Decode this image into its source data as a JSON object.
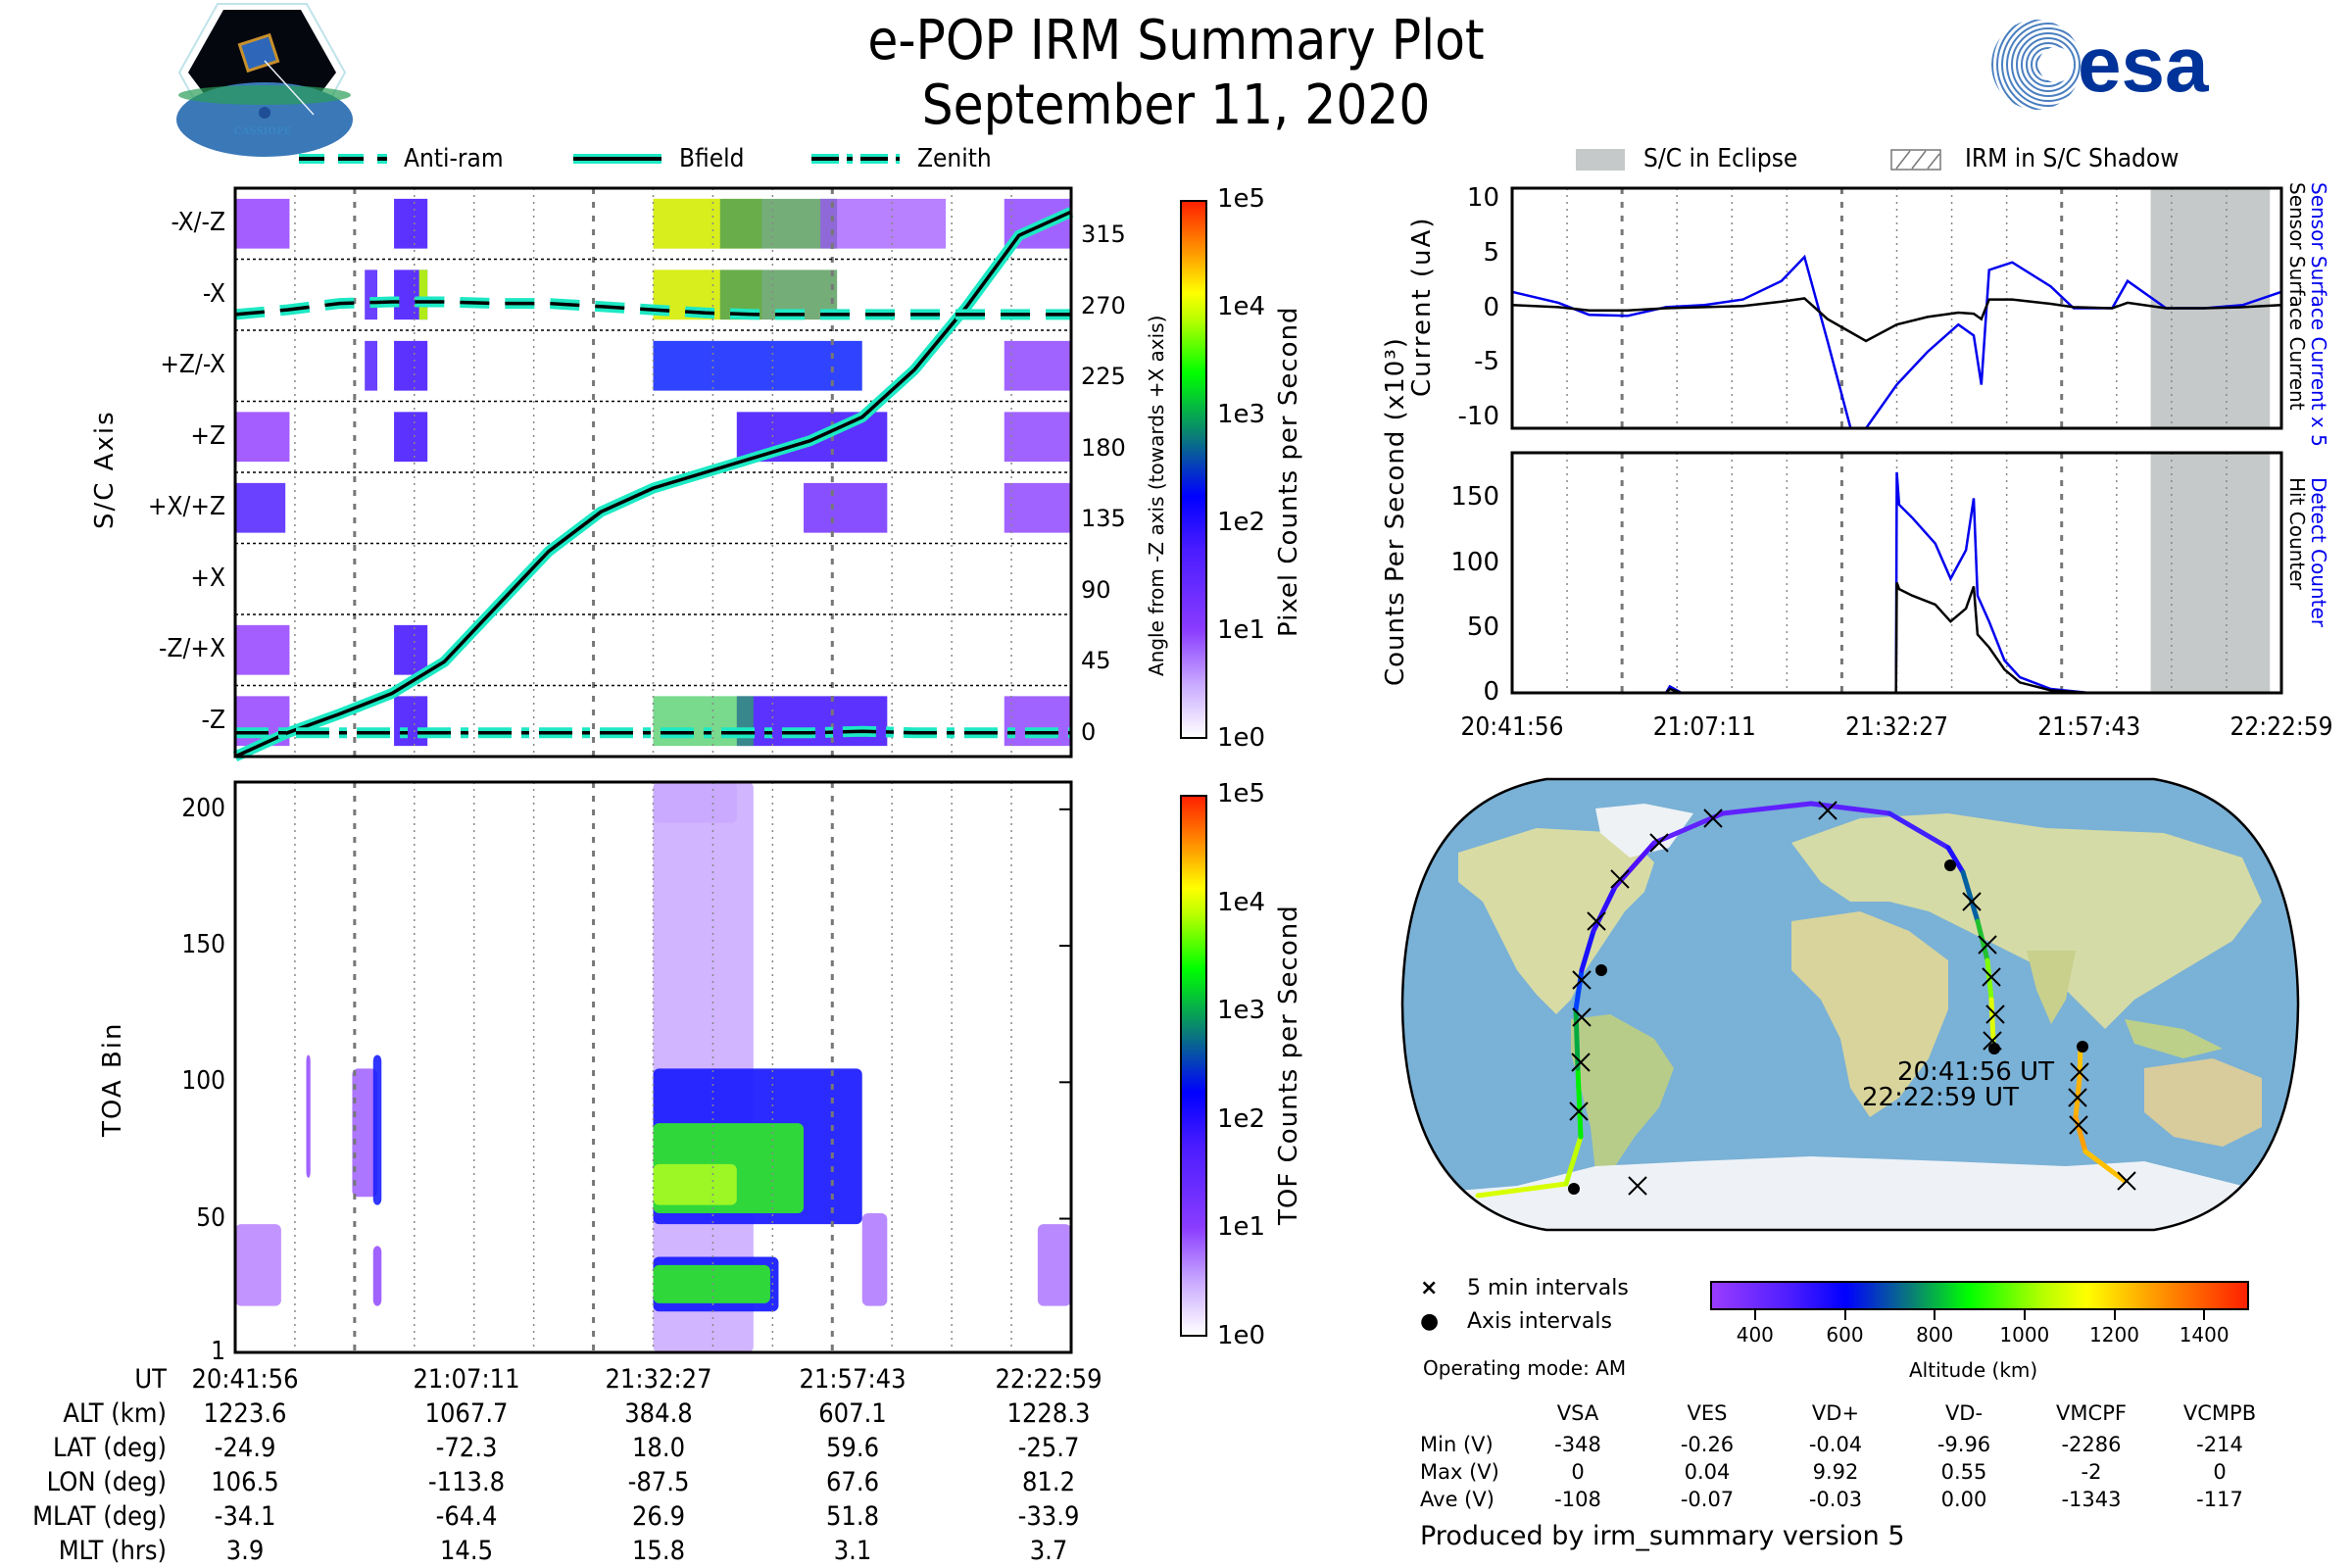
{
  "header": {
    "title": "e-POP IRM Summary Plot",
    "date": "September 11, 2020",
    "left_logo": "CASSIOPE",
    "right_logo": "esa"
  },
  "legend_top_left": [
    {
      "label": "Anti-ram",
      "style": "dashed"
    },
    {
      "label": "Bfield",
      "style": "solid"
    },
    {
      "label": "Zenith",
      "style": "dashdot"
    }
  ],
  "legend_top_right": [
    {
      "label": "S/C in Eclipse",
      "style": "gray-fill"
    },
    {
      "label": "IRM in S/C Shadow",
      "style": "hatch"
    }
  ],
  "colors": {
    "trace_outline": "#1de9c4",
    "eclipse_gray": "#c6c9c9",
    "detect_blue": "#0000ee",
    "esa_blue": "#003399"
  },
  "chart_data": [
    {
      "id": "sc-axis-spectrogram",
      "type": "heatmap",
      "ylabel": "S/C Axis",
      "y2label": "Angle from -Z axis (towards +X axis)",
      "ytick_labels": [
        "-X/-Z",
        "-X",
        "+Z/-X",
        "+Z",
        "+X/+Z",
        "+X",
        "-Z/+X",
        "-Z"
      ],
      "y2tick_labels": [
        "315",
        "270",
        "225",
        "180",
        "135",
        "90",
        "45",
        "0"
      ],
      "y2lim": [
        -15,
        345
      ],
      "colorbar": {
        "label": "Pixel Counts per Second",
        "ticks": [
          "1e0",
          "1e1",
          "1e2",
          "1e3",
          "1e4",
          "1e5"
        ],
        "scale": "log"
      },
      "x_range_ut": [
        "20:41:56",
        "22:22:59"
      ],
      "series": [
        {
          "name": "Bfield",
          "style": "solid",
          "angle_deg": [
            -15,
            0,
            12,
            25,
            45,
            80,
            115,
            140,
            155,
            165,
            175,
            185,
            200,
            230,
            270,
            315,
            330
          ]
        },
        {
          "name": "Anti-ram",
          "style": "dashed",
          "angle_deg": [
            265,
            268,
            272,
            273,
            273,
            272,
            272,
            270,
            268,
            266,
            265,
            265,
            265,
            265,
            265,
            265,
            265
          ]
        },
        {
          "name": "Zenith",
          "style": "dashdot",
          "angle_deg": [
            0,
            0,
            0,
            0,
            0,
            0,
            0,
            0,
            0,
            0,
            0,
            0,
            1,
            0,
            0,
            0,
            0
          ]
        }
      ]
    },
    {
      "id": "toa-spectrogram",
      "type": "heatmap",
      "ylabel": "TOA Bin",
      "yticks": [
        1,
        50,
        100,
        150,
        200
      ],
      "ylim": [
        1,
        210
      ],
      "colorbar": {
        "label": "TOF Counts per Second",
        "ticks": [
          "1e0",
          "1e1",
          "1e2",
          "1e3",
          "1e4",
          "1e5"
        ],
        "scale": "log"
      }
    },
    {
      "id": "current-plot",
      "type": "line",
      "ylabel": "Current (uA)",
      "yticks": [
        -10,
        -5,
        0,
        5,
        10
      ],
      "ylim": [
        -11,
        11
      ],
      "right_labels": [
        "Sensor Surface Current x 5",
        "Sensor Surface Current"
      ],
      "x": [
        0,
        0.06,
        0.1,
        0.15,
        0.2,
        0.25,
        0.3,
        0.35,
        0.38,
        0.41,
        0.44,
        0.46,
        0.5,
        0.54,
        0.58,
        0.6,
        0.61,
        0.62,
        0.65,
        0.7,
        0.73,
        0.78,
        0.8,
        0.85,
        0.9,
        0.95,
        1.0
      ],
      "series": [
        {
          "name": "Sensor Surface Current x 5",
          "color": "#0000ee",
          "values": [
            1.5,
            0.5,
            -0.6,
            -0.7,
            0.1,
            0.3,
            0.8,
            2.5,
            4.7,
            -3,
            -11,
            -11,
            -7,
            -4,
            -1.5,
            -2.5,
            -7,
            3.5,
            4.2,
            2,
            0,
            0,
            2.5,
            0,
            0,
            0.3,
            1.5
          ]
        },
        {
          "name": "Sensor Surface Current",
          "color": "#000000",
          "values": [
            0.3,
            0.1,
            -0.2,
            -0.2,
            0,
            0.1,
            0.2,
            0.6,
            0.9,
            -1,
            -2.2,
            -3,
            -1.5,
            -0.8,
            -0.4,
            -0.5,
            -1,
            0.8,
            0.8,
            0.4,
            0.1,
            0,
            0.5,
            0,
            0,
            0.1,
            0.3
          ]
        }
      ],
      "eclipse_fraction": [
        0.83,
        0.985
      ]
    },
    {
      "id": "counts-plot",
      "type": "line",
      "ylabel": "Counts Per Second (x10³)",
      "yticks": [
        0,
        50,
        100,
        150
      ],
      "ylim": [
        0,
        185
      ],
      "xtick_labels": [
        "20:41:56",
        "21:07:11",
        "21:32:27",
        "21:57:43",
        "22:22:59"
      ],
      "right_labels": [
        "Detect Counter",
        "Hit Counter"
      ],
      "x": [
        0,
        0.2,
        0.205,
        0.22,
        0.499,
        0.5,
        0.503,
        0.52,
        0.55,
        0.57,
        0.59,
        0.6,
        0.605,
        0.62,
        0.64,
        0.66,
        0.7,
        0.75,
        1.0
      ],
      "series": [
        {
          "name": "Detect Counter",
          "color": "#0000ee",
          "values": [
            0,
            0,
            5,
            0,
            0,
            170,
            145,
            135,
            115,
            88,
            110,
            150,
            75,
            55,
            25,
            12,
            3,
            0,
            0
          ]
        },
        {
          "name": "Hit Counter",
          "color": "#000000",
          "values": [
            0,
            0,
            3,
            0,
            0,
            85,
            80,
            75,
            68,
            55,
            65,
            82,
            45,
            35,
            18,
            8,
            2,
            0,
            0
          ]
        }
      ],
      "eclipse_fraction": [
        0.83,
        0.985
      ]
    },
    {
      "id": "altitude-colorbar",
      "type": "heatmap",
      "xlabel": "Altitude (km)",
      "xticks": [
        400,
        600,
        800,
        1000,
        1200,
        1400
      ],
      "xlim": [
        300,
        1500
      ]
    }
  ],
  "map": {
    "start_label": "20:41:56 UT",
    "end_label": "22:22:59 UT",
    "legend": [
      {
        "symbol": "×",
        "label": "5 min intervals"
      },
      {
        "symbol": "●",
        "label": "Axis intervals"
      }
    ]
  },
  "operating_mode": "Operating mode: AM",
  "ephemeris": {
    "row_labels": [
      "UT",
      "ALT (km)",
      "LAT (deg)",
      "LON (deg)",
      "MLAT (deg)",
      "MLT (hrs)"
    ],
    "columns": [
      [
        "20:41:56",
        "1223.6",
        "-24.9",
        "106.5",
        "-34.1",
        "3.9"
      ],
      [
        "21:07:11",
        "1067.7",
        "-72.3",
        "-113.8",
        "-64.4",
        "14.5"
      ],
      [
        "21:32:27",
        "384.8",
        "18.0",
        "-87.5",
        "26.9",
        "15.8"
      ],
      [
        "21:57:43",
        "607.1",
        "59.6",
        "67.6",
        "51.8",
        "3.1"
      ],
      [
        "22:22:59",
        "1228.3",
        "-25.7",
        "81.2",
        "-33.9",
        "3.7"
      ]
    ]
  },
  "voltages": {
    "headers": [
      "VSA",
      "VES",
      "VD+",
      "VD-",
      "VMCPF",
      "VCMPB"
    ],
    "rows": [
      {
        "label": "Min (V)",
        "values": [
          "-348",
          "-0.26",
          "-0.04",
          "-9.96",
          "-2286",
          "-214"
        ]
      },
      {
        "label": "Max (V)",
        "values": [
          "0",
          "0.04",
          "9.92",
          "0.55",
          "-2",
          "0"
        ]
      },
      {
        "label": "Ave (V)",
        "values": [
          "-108",
          "-0.07",
          "-0.03",
          "0.00",
          "-1343",
          "-117"
        ]
      }
    ]
  },
  "footer": "Produced by irm_summary version 5"
}
